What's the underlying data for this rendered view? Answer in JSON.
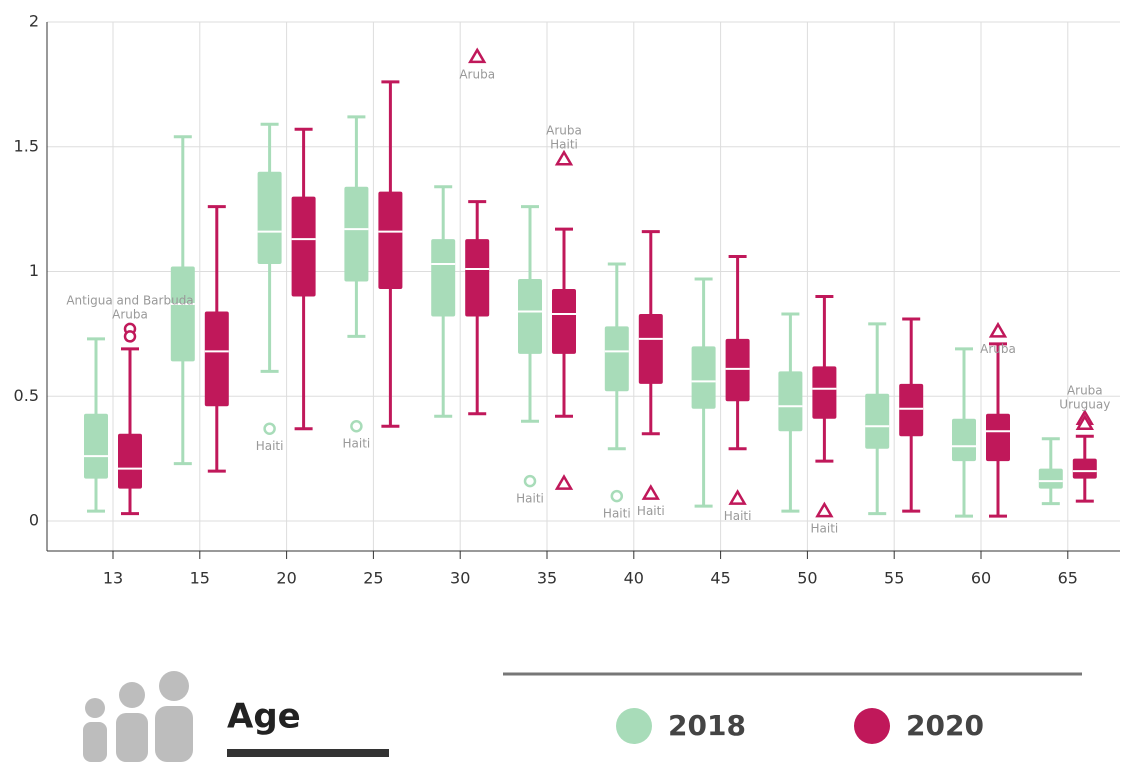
{
  "chart_data": {
    "type": "box",
    "categories": [
      "13",
      "15",
      "20",
      "25",
      "30",
      "35",
      "40",
      "45",
      "50",
      "55",
      "60",
      "65"
    ],
    "ylim": [
      -0.12,
      2
    ],
    "yticks": [
      0,
      0.5,
      1,
      1.5,
      2
    ],
    "grid": true,
    "legend_title": "Age",
    "series": [
      {
        "name": "2018",
        "color": "#a8dcb9",
        "boxes": [
          {
            "min": 0.04,
            "q1": 0.17,
            "median": 0.26,
            "q3": 0.43,
            "max": 0.73
          },
          {
            "min": 0.23,
            "q1": 0.64,
            "median": 0.87,
            "q3": 1.02,
            "max": 1.54
          },
          {
            "min": 0.6,
            "q1": 1.03,
            "median": 1.16,
            "q3": 1.4,
            "max": 1.59
          },
          {
            "min": 0.74,
            "q1": 0.96,
            "median": 1.17,
            "q3": 1.34,
            "max": 1.62
          },
          {
            "min": 0.42,
            "q1": 0.82,
            "median": 1.03,
            "q3": 1.13,
            "max": 1.34
          },
          {
            "min": 0.4,
            "q1": 0.67,
            "median": 0.84,
            "q3": 0.97,
            "max": 1.26
          },
          {
            "min": 0.29,
            "q1": 0.52,
            "median": 0.68,
            "q3": 0.78,
            "max": 1.03
          },
          {
            "min": 0.06,
            "q1": 0.45,
            "median": 0.56,
            "q3": 0.7,
            "max": 0.97
          },
          {
            "min": 0.04,
            "q1": 0.36,
            "median": 0.46,
            "q3": 0.6,
            "max": 0.83
          },
          {
            "min": 0.03,
            "q1": 0.29,
            "median": 0.38,
            "q3": 0.51,
            "max": 0.79
          },
          {
            "min": 0.02,
            "q1": 0.24,
            "median": 0.3,
            "q3": 0.41,
            "max": 0.69
          },
          {
            "min": 0.07,
            "q1": 0.13,
            "median": 0.16,
            "q3": 0.21,
            "max": 0.33
          }
        ],
        "outliers": [
          {
            "category": "20",
            "value": 0.37,
            "label": "Haiti",
            "marker": "circle"
          },
          {
            "category": "25",
            "value": 0.38,
            "label": "Haiti",
            "marker": "circle"
          },
          {
            "category": "35",
            "value": 0.16,
            "label": "Haiti",
            "marker": "circle"
          },
          {
            "category": "40",
            "value": 0.1,
            "label": "Haiti",
            "marker": "circle"
          }
        ]
      },
      {
        "name": "2020",
        "color": "#c0185a",
        "boxes": [
          {
            "min": 0.03,
            "q1": 0.13,
            "median": 0.21,
            "q3": 0.35,
            "max": 0.69
          },
          {
            "min": 0.2,
            "q1": 0.46,
            "median": 0.68,
            "q3": 0.84,
            "max": 1.26
          },
          {
            "min": 0.37,
            "q1": 0.9,
            "median": 1.13,
            "q3": 1.3,
            "max": 1.57
          },
          {
            "min": 0.38,
            "q1": 0.93,
            "median": 1.16,
            "q3": 1.32,
            "max": 1.76
          },
          {
            "min": 0.43,
            "q1": 0.82,
            "median": 1.01,
            "q3": 1.13,
            "max": 1.28
          },
          {
            "min": 0.42,
            "q1": 0.67,
            "median": 0.83,
            "q3": 0.93,
            "max": 1.17
          },
          {
            "min": 0.35,
            "q1": 0.55,
            "median": 0.73,
            "q3": 0.83,
            "max": 1.16
          },
          {
            "min": 0.29,
            "q1": 0.48,
            "median": 0.61,
            "q3": 0.73,
            "max": 1.06
          },
          {
            "min": 0.24,
            "q1": 0.41,
            "median": 0.53,
            "q3": 0.62,
            "max": 0.9
          },
          {
            "min": 0.04,
            "q1": 0.34,
            "median": 0.45,
            "q3": 0.55,
            "max": 0.81
          },
          {
            "min": 0.02,
            "q1": 0.24,
            "median": 0.36,
            "q3": 0.43,
            "max": 0.71
          },
          {
            "min": 0.08,
            "q1": 0.17,
            "median": 0.2,
            "q3": 0.25,
            "max": 0.34
          }
        ],
        "outliers": [
          {
            "category": "13",
            "value": 0.77,
            "label": "Antigua and Barbuda",
            "marker": "circle"
          },
          {
            "category": "13",
            "value": 0.74,
            "label": "Aruba",
            "marker": "circle"
          },
          {
            "category": "30",
            "value": 1.86,
            "label": "Aruba",
            "marker": "triangle"
          },
          {
            "category": "35",
            "value": 1.45,
            "label": "Aruba",
            "marker": "triangle"
          },
          {
            "category": "35",
            "value": 0.15,
            "label": "Haiti",
            "marker": "triangle"
          },
          {
            "category": "40",
            "value": 0.11,
            "label": "Haiti",
            "marker": "triangle"
          },
          {
            "category": "45",
            "value": 0.09,
            "label": "Haiti",
            "marker": "triangle"
          },
          {
            "category": "50",
            "value": 0.04,
            "label": "Haiti",
            "marker": "triangle"
          },
          {
            "category": "60",
            "value": 0.76,
            "label": "Aruba",
            "marker": "triangle"
          },
          {
            "category": "65",
            "value": 0.41,
            "label": "Aruba",
            "marker": "triangle"
          },
          {
            "category": "65",
            "value": 0.39,
            "label": "Uruguay",
            "marker": "triangle"
          }
        ]
      }
    ]
  }
}
